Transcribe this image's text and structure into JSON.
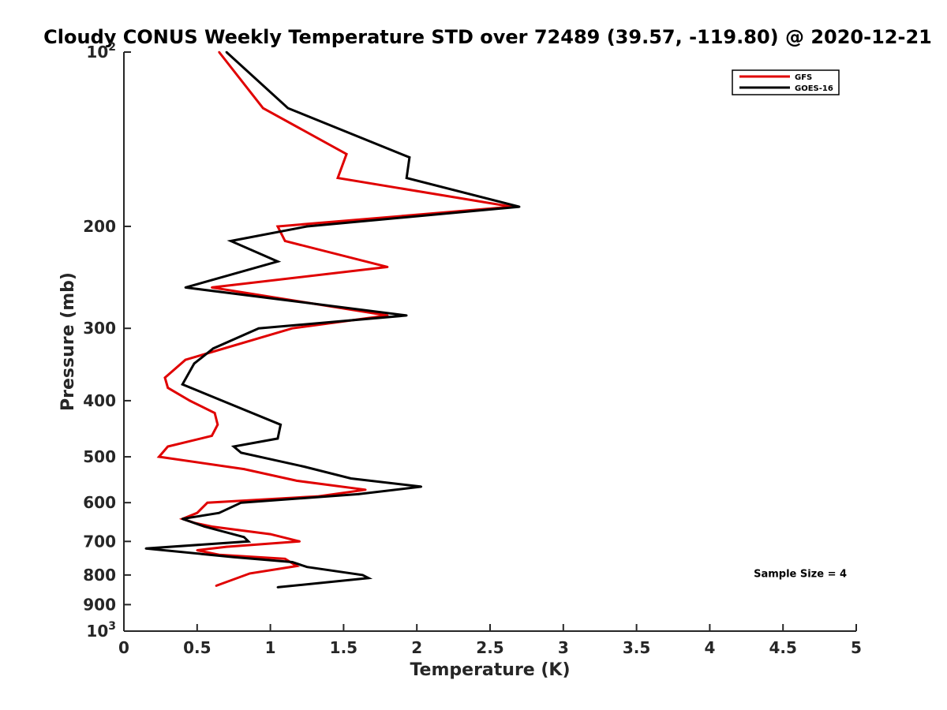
{
  "chart_data": {
    "type": "line",
    "title": "Cloudy CONUS Weekly Temperature STD over 72489 (39.57, -119.80) @ 2020-12-21",
    "xlabel": "Temperature (K)",
    "ylabel": "Pressure (mb)",
    "xlim": [
      0,
      5
    ],
    "ylim": [
      100,
      1000
    ],
    "y_scale": "log",
    "y_reversed": true,
    "x_ticks": [
      {
        "value": 0,
        "label": "0"
      },
      {
        "value": 0.5,
        "label": "0.5"
      },
      {
        "value": 1,
        "label": "1"
      },
      {
        "value": 1.5,
        "label": "1.5"
      },
      {
        "value": 2,
        "label": "2"
      },
      {
        "value": 2.5,
        "label": "2.5"
      },
      {
        "value": 3,
        "label": "3"
      },
      {
        "value": 3.5,
        "label": "3.5"
      },
      {
        "value": 4,
        "label": "4"
      },
      {
        "value": 4.5,
        "label": "4.5"
      },
      {
        "value": 5,
        "label": "5"
      }
    ],
    "y_ticks": [
      {
        "value": 100,
        "label": "10",
        "sup": "2"
      },
      {
        "value": 200,
        "label": "200",
        "sup": ""
      },
      {
        "value": 300,
        "label": "300",
        "sup": ""
      },
      {
        "value": 400,
        "label": "400",
        "sup": ""
      },
      {
        "value": 500,
        "label": "500",
        "sup": ""
      },
      {
        "value": 600,
        "label": "600",
        "sup": ""
      },
      {
        "value": 700,
        "label": "700",
        "sup": ""
      },
      {
        "value": 800,
        "label": "800",
        "sup": ""
      },
      {
        "value": 900,
        "label": "900",
        "sup": ""
      },
      {
        "value": 1000,
        "label": "10",
        "sup": "3"
      }
    ],
    "grid": false,
    "legend_position": "top-right",
    "series": [
      {
        "name": "GFS",
        "color": "#e00000",
        "points": [
          [
            0.65,
            100
          ],
          [
            0.95,
            125
          ],
          [
            1.52,
            150
          ],
          [
            1.46,
            165
          ],
          [
            2.65,
            185
          ],
          [
            1.05,
            200
          ],
          [
            1.1,
            212
          ],
          [
            1.8,
            235
          ],
          [
            0.6,
            255
          ],
          [
            1.8,
            285
          ],
          [
            1.15,
            300
          ],
          [
            0.42,
            340
          ],
          [
            0.28,
            365
          ],
          [
            0.3,
            380
          ],
          [
            0.45,
            400
          ],
          [
            0.62,
            420
          ],
          [
            0.64,
            440
          ],
          [
            0.6,
            460
          ],
          [
            0.3,
            480
          ],
          [
            0.24,
            500
          ],
          [
            0.82,
            525
          ],
          [
            1.18,
            550
          ],
          [
            1.65,
            570
          ],
          [
            1.33,
            585
          ],
          [
            0.57,
            600
          ],
          [
            0.5,
            625
          ],
          [
            0.4,
            640
          ],
          [
            0.48,
            650
          ],
          [
            0.6,
            660
          ],
          [
            1.0,
            680
          ],
          [
            1.2,
            700
          ],
          [
            0.7,
            715
          ],
          [
            0.5,
            725
          ],
          [
            0.65,
            738
          ],
          [
            1.1,
            750
          ],
          [
            1.18,
            772
          ],
          [
            0.86,
            795
          ],
          [
            0.63,
            835
          ]
        ]
      },
      {
        "name": "GOES-16",
        "color": "#000000",
        "points": [
          [
            0.7,
            100
          ],
          [
            1.12,
            125
          ],
          [
            1.95,
            152
          ],
          [
            1.93,
            165
          ],
          [
            2.7,
            185
          ],
          [
            1.25,
            200
          ],
          [
            0.73,
            212
          ],
          [
            1.05,
            230
          ],
          [
            0.42,
            255
          ],
          [
            1.93,
            285
          ],
          [
            0.92,
            300
          ],
          [
            0.61,
            325
          ],
          [
            0.48,
            345
          ],
          [
            0.4,
            375
          ],
          [
            1.07,
            440
          ],
          [
            1.05,
            465
          ],
          [
            0.75,
            480
          ],
          [
            0.8,
            492
          ],
          [
            1.23,
            520
          ],
          [
            1.55,
            545
          ],
          [
            2.03,
            563
          ],
          [
            1.6,
            580
          ],
          [
            0.8,
            600
          ],
          [
            0.65,
            625
          ],
          [
            0.4,
            640
          ],
          [
            0.55,
            660
          ],
          [
            0.82,
            688
          ],
          [
            0.85,
            700
          ],
          [
            0.15,
            720
          ],
          [
            0.75,
            745
          ],
          [
            1.15,
            760
          ],
          [
            1.25,
            775
          ],
          [
            1.63,
            800
          ],
          [
            1.67,
            810
          ],
          [
            1.05,
            840
          ]
        ]
      }
    ],
    "annotations": [
      {
        "text": "Sample Size = 4",
        "x": 4.3,
        "y": 895
      }
    ]
  }
}
